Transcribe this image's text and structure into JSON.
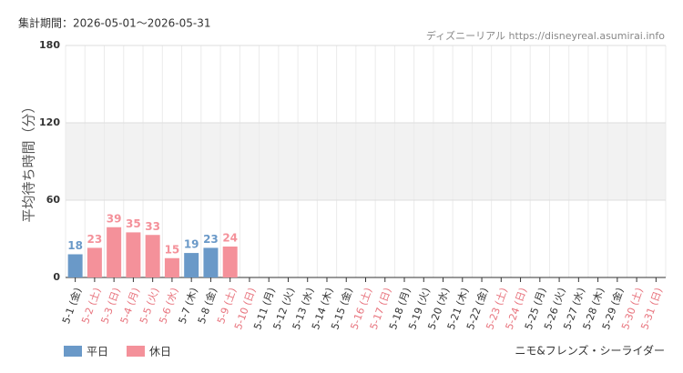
{
  "chart_data": {
    "type": "bar",
    "period": "集計期間：2026-05-01～2026-05-31",
    "source": "ディズニーリアル https://disneyreal.asumirai.info",
    "y_label": "平均待ち時間（分）",
    "attraction": "ニモ&フレンズ・シーライダー",
    "categories": [
      "5-1 (金)",
      "5-2 (土)",
      "5-3 (日)",
      "5-4 (月)",
      "5-5 (火)",
      "5-6 (水)",
      "5-7 (木)",
      "5-8 (金)",
      "5-9 (土)",
      "5-10 (日)",
      "5-11 (月)",
      "5-12 (火)",
      "5-13 (水)",
      "5-14 (木)",
      "5-15 (金)",
      "5-16 (土)",
      "5-17 (日)",
      "5-18 (月)",
      "5-19 (火)",
      "5-20 (水)",
      "5-21 (木)",
      "5-22 (金)",
      "5-23 (土)",
      "5-24 (日)",
      "5-25 (月)",
      "5-26 (火)",
      "5-27 (水)",
      "5-28 (木)",
      "5-29 (金)",
      "5-30 (土)",
      "5-31 (日)"
    ],
    "holiday": [
      false,
      true,
      true,
      true,
      true,
      true,
      false,
      false,
      true,
      true,
      false,
      false,
      false,
      false,
      false,
      true,
      true,
      false,
      false,
      false,
      false,
      false,
      true,
      true,
      false,
      false,
      false,
      false,
      false,
      true,
      true
    ],
    "series": [
      {
        "name": "平日",
        "color": "#6a99c8",
        "values": [
          18,
          null,
          null,
          null,
          null,
          null,
          19,
          23,
          null,
          null,
          null,
          null,
          null,
          null,
          null,
          null,
          null,
          null,
          null,
          null,
          null,
          null,
          null,
          null,
          null,
          null,
          null,
          null,
          null,
          null,
          null
        ]
      },
      {
        "name": "休日",
        "color": "#f4919a",
        "values": [
          null,
          23,
          39,
          35,
          33,
          15,
          null,
          null,
          24,
          null,
          null,
          null,
          null,
          null,
          null,
          null,
          null,
          null,
          null,
          null,
          null,
          null,
          null,
          null,
          null,
          null,
          null,
          null,
          null,
          null,
          null
        ]
      }
    ],
    "holiday_label_color": "#e8737d",
    "shaded_band": [
      60,
      120
    ],
    "ylim": [
      0,
      180
    ],
    "yticks": [
      0,
      60,
      120,
      180
    ],
    "grid": true,
    "legend": "bottom-left"
  }
}
